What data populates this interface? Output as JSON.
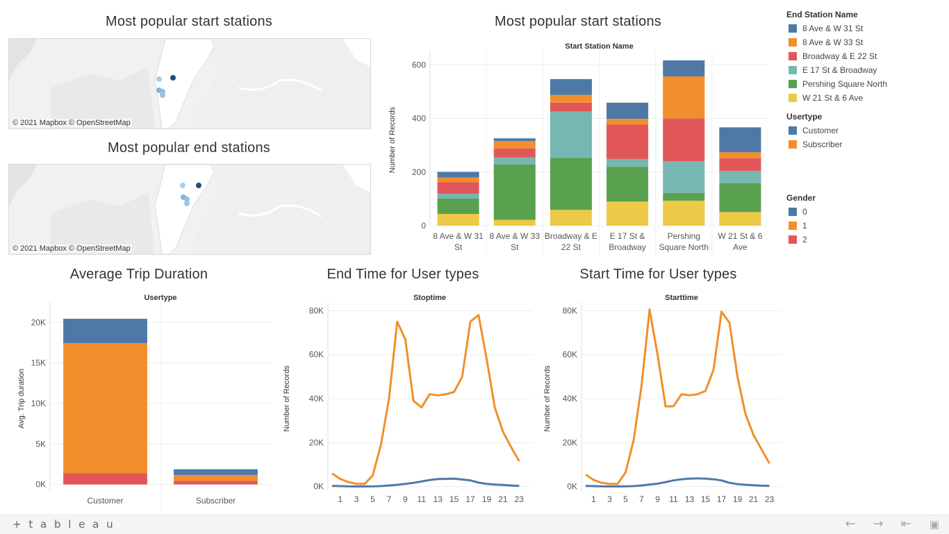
{
  "maps": {
    "start": {
      "title": "Most popular start stations",
      "attribution": "© 2021 Mapbox  © OpenStreetMap"
    },
    "end": {
      "title": "Most popular end stations",
      "attribution": "© 2021 Mapbox  © OpenStreetMap"
    }
  },
  "charts": {
    "stations_title": "Most popular start stations",
    "duration_title": "Average Trip Duration",
    "end_time_title": "End Time for User types",
    "start_time_title": "Start Time for User types"
  },
  "legend": {
    "end_station": {
      "title": "End Station Name",
      "items": [
        {
          "label": "8 Ave & W 31 St",
          "color": "#4e79a7"
        },
        {
          "label": "8 Ave & W 33 St",
          "color": "#f28e2b"
        },
        {
          "label": "Broadway & E 22 St",
          "color": "#e15759"
        },
        {
          "label": "E 17 St & Broadway",
          "color": "#76b7b2"
        },
        {
          "label": "Pershing Square North",
          "color": "#59a14f"
        },
        {
          "label": "W 21 St & 6 Ave",
          "color": "#edc948"
        }
      ]
    },
    "usertype": {
      "title": "Usertype",
      "items": [
        {
          "label": "Customer",
          "color": "#4e79a7"
        },
        {
          "label": "Subscriber",
          "color": "#f28e2b"
        }
      ]
    },
    "gender": {
      "title": "Gender",
      "items": [
        {
          "label": "0",
          "color": "#4e79a7"
        },
        {
          "label": "1",
          "color": "#f28e2b"
        },
        {
          "label": "2",
          "color": "#e15759"
        }
      ]
    }
  },
  "footer": {
    "logo": "+ t a b l e a u",
    "nav_icons": [
      "back-icon",
      "forward-icon",
      "first-icon",
      "fullscreen-icon"
    ]
  },
  "chart_data": [
    {
      "type": "bar",
      "stacked": true,
      "title": "Most popular start stations",
      "header": "Start Station Name",
      "xlabel": "",
      "ylabel": "Number of Records",
      "ylim": [
        0,
        640
      ],
      "yticks": [
        0,
        200,
        400,
        600
      ],
      "categories": [
        [
          "8 Ave & W 31",
          "St"
        ],
        [
          "8 Ave & W 33",
          "St"
        ],
        [
          "Broadway & E",
          "22 St"
        ],
        [
          "E 17 St &",
          "Broadway"
        ],
        [
          "Pershing",
          "Square North"
        ],
        [
          "W 21 St & 6",
          "Ave"
        ]
      ],
      "series": [
        {
          "name": "W 21 St & 6 Ave",
          "color": "#edc948",
          "values": [
            44,
            22,
            59,
            90,
            93,
            51
          ]
        },
        {
          "name": "Pershing Square North",
          "color": "#59a14f",
          "values": [
            57,
            206,
            194,
            130,
            29,
            107
          ]
        },
        {
          "name": "E 17 St & Broadway",
          "color": "#76b7b2",
          "values": [
            18,
            27,
            173,
            29,
            119,
            46
          ]
        },
        {
          "name": "Broadway & E 22 St",
          "color": "#e15759",
          "values": [
            43,
            33,
            33,
            128,
            159,
            48
          ]
        },
        {
          "name": "8 Ave & W 33 St",
          "color": "#f28e2b",
          "values": [
            18,
            28,
            29,
            22,
            157,
            22
          ]
        },
        {
          "name": "8 Ave & W 31 St",
          "color": "#4e79a7",
          "values": [
            21,
            10,
            59,
            60,
            60,
            93
          ]
        }
      ]
    },
    {
      "type": "bar",
      "stacked": true,
      "title": "Average Trip Duration",
      "header": "Usertype",
      "xlabel": "",
      "ylabel": "Avg. Trip duration",
      "ylim": [
        -800,
        22000
      ],
      "yticks": [
        0,
        5000,
        10000,
        15000,
        20000
      ],
      "ytick_labels": [
        "0K",
        "5K",
        "10K",
        "15K",
        "20K"
      ],
      "categories": [
        [
          "Customer"
        ],
        [
          "Subscriber"
        ]
      ],
      "series": [
        {
          "name": "2",
          "color": "#e15759",
          "values": [
            1400,
            460
          ]
        },
        {
          "name": "1",
          "color": "#f28e2b",
          "values": [
            16050,
            720
          ]
        },
        {
          "name": "0",
          "color": "#4e79a7",
          "values": [
            3000,
            700
          ]
        }
      ]
    },
    {
      "type": "line",
      "title": "End Time for User types",
      "header": "Stoptime",
      "xlabel": "",
      "ylabel": "Number of Records",
      "xlim": [
        0,
        24
      ],
      "ylim": [
        -2000,
        82000
      ],
      "xticks": [
        1,
        3,
        5,
        7,
        9,
        11,
        13,
        15,
        17,
        19,
        21,
        23
      ],
      "yticks": [
        0,
        20000,
        40000,
        60000,
        80000
      ],
      "ytick_labels": [
        "0K",
        "20K",
        "40K",
        "60K",
        "80K"
      ],
      "x": [
        0,
        1,
        2,
        3,
        4,
        5,
        6,
        7,
        8,
        9,
        10,
        11,
        12,
        13,
        14,
        15,
        16,
        17,
        18,
        19,
        20,
        21,
        22,
        23
      ],
      "series": [
        {
          "name": "Subscriber",
          "color": "#f28e2b",
          "values": [
            6000,
            3500,
            2000,
            1300,
            1200,
            5000,
            19000,
            40000,
            75000,
            67000,
            39000,
            36000,
            42000,
            41500,
            42000,
            43000,
            50000,
            75000,
            78000,
            58000,
            36000,
            25000,
            18000,
            11500
          ]
        },
        {
          "name": "Customer",
          "color": "#4e79a7",
          "values": [
            300,
            200,
            100,
            50,
            50,
            100,
            200,
            500,
            800,
            1200,
            1700,
            2300,
            3000,
            3400,
            3500,
            3600,
            3200,
            2800,
            1800,
            1200,
            900,
            700,
            500,
            300
          ]
        }
      ]
    },
    {
      "type": "line",
      "title": "Start Time for User types",
      "header": "Starttime",
      "xlabel": "",
      "ylabel": "Number of Records",
      "xlim": [
        0,
        24
      ],
      "ylim": [
        -2000,
        82000
      ],
      "xticks": [
        1,
        3,
        5,
        7,
        9,
        11,
        13,
        15,
        17,
        19,
        21,
        23
      ],
      "yticks": [
        0,
        20000,
        40000,
        60000,
        80000
      ],
      "ytick_labels": [
        "0K",
        "20K",
        "40K",
        "60K",
        "80K"
      ],
      "x": [
        0,
        1,
        2,
        3,
        4,
        5,
        6,
        7,
        8,
        9,
        10,
        11,
        12,
        13,
        14,
        15,
        16,
        17,
        18,
        19,
        20,
        21,
        22,
        23
      ],
      "series": [
        {
          "name": "Subscriber",
          "color": "#f28e2b",
          "values": [
            5500,
            3000,
            1700,
            1200,
            1200,
            6500,
            21000,
            46000,
            80500,
            60000,
            36500,
            36500,
            42000,
            41500,
            42000,
            43500,
            53000,
            79500,
            74500,
            50000,
            33000,
            23500,
            17000,
            10500
          ]
        },
        {
          "name": "Customer",
          "color": "#4e79a7",
          "values": [
            300,
            200,
            100,
            50,
            50,
            100,
            200,
            500,
            900,
            1300,
            2000,
            2800,
            3300,
            3600,
            3700,
            3600,
            3300,
            2800,
            1700,
            1100,
            800,
            600,
            400,
            300
          ]
        }
      ]
    }
  ]
}
